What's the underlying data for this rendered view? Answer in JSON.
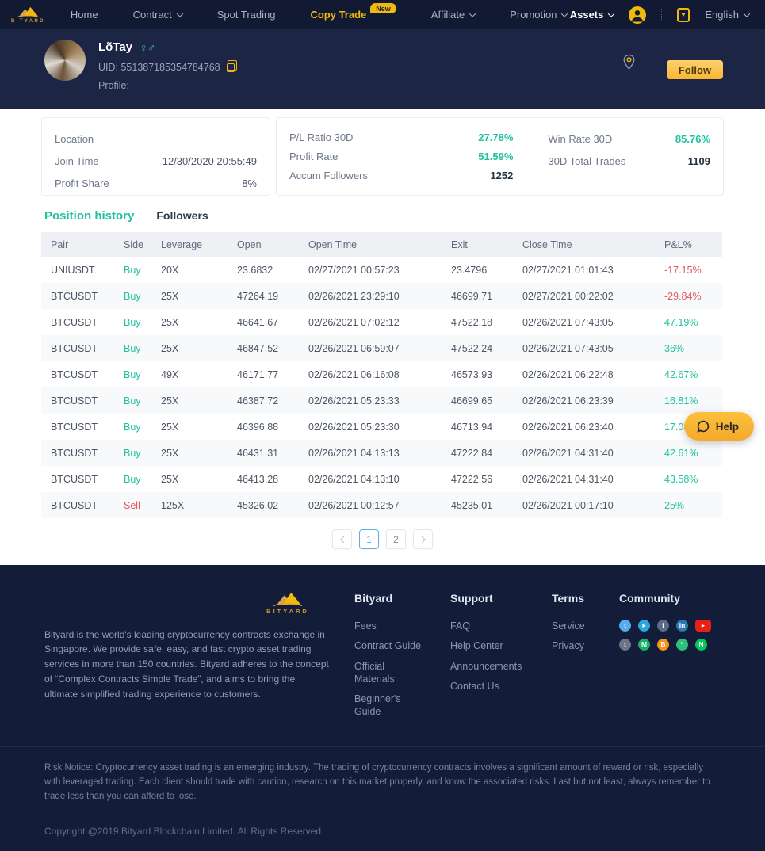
{
  "colors": {
    "accent_yellow": "#f0b90b",
    "teal": "#21c2a0",
    "red": "#e0575b",
    "page_active_blue": "#58b0e8",
    "nav_bg": "#121a33",
    "band_bg": "#1c2543"
  },
  "nav": {
    "brand": "BITYARD",
    "items": [
      {
        "label": "Home",
        "dropdown": false,
        "active": false
      },
      {
        "label": "Contract",
        "dropdown": true,
        "active": false
      },
      {
        "label": "Spot Trading",
        "dropdown": false,
        "active": false
      },
      {
        "label": "Copy Trade",
        "dropdown": false,
        "active": true,
        "badge": "New"
      },
      {
        "label": "Affiliate",
        "dropdown": true,
        "active": false
      },
      {
        "label": "Promotion",
        "dropdown": true,
        "active": false
      }
    ],
    "assets_label": "Assets",
    "language": "English",
    "icons": {
      "avatar": "user-avatar-icon",
      "download": "app-download-icon"
    }
  },
  "profile": {
    "name": "LõTay",
    "gender_glyph": "♀♂",
    "uid_text": "UID: 551387185354784768",
    "profile_label": "Profile:",
    "follow_button": "Follow",
    "icons": {
      "pin": "location-pin-icon",
      "copy": "copy-icon"
    }
  },
  "info": {
    "rows": [
      {
        "label": "Location",
        "value": ""
      },
      {
        "label": "Join Time",
        "value": "12/30/2020 20:55:49"
      },
      {
        "label": "Profit Share",
        "value": "8%"
      }
    ]
  },
  "stats": {
    "left": [
      {
        "label": "P/L Ratio 30D",
        "value": "27.78%",
        "accent": true
      },
      {
        "label": "Profit Rate",
        "value": "51.59%",
        "accent": true
      },
      {
        "label": "Accum Followers",
        "value": "1252",
        "accent": false
      }
    ],
    "right": [
      {
        "label": "Win Rate 30D",
        "value": "85.76%",
        "accent": true
      },
      {
        "label": "30D Total Trades",
        "value": "1109",
        "accent": false
      }
    ]
  },
  "tabs": {
    "position_history": "Position history",
    "followers": "Followers"
  },
  "table": {
    "headers": [
      "Pair",
      "Side",
      "Leverage",
      "Open",
      "Open Time",
      "Exit",
      "Close Time",
      "P&L%"
    ],
    "rows": [
      {
        "pair": "UNIUSDT",
        "side": "Buy",
        "leverage": "20X",
        "open": "23.6832",
        "open_time": "02/27/2021 00:57:23",
        "exit": "23.4796",
        "close_time": "02/27/2021 01:01:43",
        "pnl": "-17.15%"
      },
      {
        "pair": "BTCUSDT",
        "side": "Buy",
        "leverage": "25X",
        "open": "47264.19",
        "open_time": "02/26/2021 23:29:10",
        "exit": "46699.71",
        "close_time": "02/27/2021 00:22:02",
        "pnl": "-29.84%"
      },
      {
        "pair": "BTCUSDT",
        "side": "Buy",
        "leverage": "25X",
        "open": "46641.67",
        "open_time": "02/26/2021 07:02:12",
        "exit": "47522.18",
        "close_time": "02/26/2021 07:43:05",
        "pnl": "47.19%"
      },
      {
        "pair": "BTCUSDT",
        "side": "Buy",
        "leverage": "25X",
        "open": "46847.52",
        "open_time": "02/26/2021 06:59:07",
        "exit": "47522.24",
        "close_time": "02/26/2021 07:43:05",
        "pnl": "36%"
      },
      {
        "pair": "BTCUSDT",
        "side": "Buy",
        "leverage": "49X",
        "open": "46171.77",
        "open_time": "02/26/2021 06:16:08",
        "exit": "46573.93",
        "close_time": "02/26/2021 06:22:48",
        "pnl": "42.67%"
      },
      {
        "pair": "BTCUSDT",
        "side": "Buy",
        "leverage": "25X",
        "open": "46387.72",
        "open_time": "02/26/2021 05:23:33",
        "exit": "46699.65",
        "close_time": "02/26/2021 06:23:39",
        "pnl": "16.81%"
      },
      {
        "pair": "BTCUSDT",
        "side": "Buy",
        "leverage": "25X",
        "open": "46396.88",
        "open_time": "02/26/2021 05:23:30",
        "exit": "46713.94",
        "close_time": "02/26/2021 06:23:40",
        "pnl": "17.08%"
      },
      {
        "pair": "BTCUSDT",
        "side": "Buy",
        "leverage": "25X",
        "open": "46431.31",
        "open_time": "02/26/2021 04:13:13",
        "exit": "47222.84",
        "close_time": "02/26/2021 04:31:40",
        "pnl": "42.61%"
      },
      {
        "pair": "BTCUSDT",
        "side": "Buy",
        "leverage": "25X",
        "open": "46413.28",
        "open_time": "02/26/2021 04:13:10",
        "exit": "47222.56",
        "close_time": "02/26/2021 04:31:40",
        "pnl": "43.58%"
      },
      {
        "pair": "BTCUSDT",
        "side": "Sell",
        "leverage": "125X",
        "open": "45326.02",
        "open_time": "02/26/2021 00:12:57",
        "exit": "45235.01",
        "close_time": "02/26/2021 00:17:10",
        "pnl": "25%"
      }
    ]
  },
  "pagination": {
    "pages": [
      "1",
      "2"
    ],
    "active": "1",
    "prev_icon": "chevron-left-icon",
    "next_icon": "chevron-right-icon"
  },
  "help": {
    "label": "Help",
    "icon": "speech-bubble-icon"
  },
  "footer": {
    "brand": "BITYARD",
    "about": "Bityard is the world's leading cryptocurrency contracts exchange in Singapore. We provide safe, easy, and fast crypto asset trading services in more than 150 countries. Bityard adheres to the concept of “Complex Contracts Simple Trade”, and aims to bring the ultimate simplified trading experience to customers.",
    "columns": [
      {
        "title": "Bityard",
        "links": [
          "Fees",
          "Contract Guide",
          "Official Materials",
          "Beginner's Guide"
        ]
      },
      {
        "title": "Support",
        "links": [
          "FAQ",
          "Help Center",
          "Announcements",
          "Contact Us"
        ]
      },
      {
        "title": "Terms",
        "links": [
          "Service",
          "Privacy"
        ]
      }
    ],
    "community": {
      "title": "Community",
      "icons": [
        {
          "name": "twitter-icon",
          "glyph": "t",
          "color": "#55acee",
          "shape": "circle"
        },
        {
          "name": "telegram-icon",
          "glyph": "▸",
          "color": "#2ca5e0",
          "shape": "circle"
        },
        {
          "name": "facebook-icon",
          "glyph": "f",
          "color": "#5a6b8c",
          "shape": "circle"
        },
        {
          "name": "linkedin-icon",
          "glyph": "in",
          "color": "#2d77b5",
          "shape": "circle"
        },
        {
          "name": "youtube-icon",
          "glyph": "▸",
          "color": "#e62117",
          "shape": "rect"
        },
        {
          "name": "tumblr-icon",
          "glyph": "t",
          "color": "#6d7585",
          "shape": "circle"
        },
        {
          "name": "medium-icon",
          "glyph": "M",
          "color": "#17b06b",
          "shape": "circle"
        },
        {
          "name": "bitcointalk-icon",
          "glyph": "B",
          "color": "#f7931a",
          "shape": "circle"
        },
        {
          "name": "chat-icon",
          "glyph": "“",
          "color": "#30be7e",
          "shape": "circle"
        },
        {
          "name": "naver-icon",
          "glyph": "N",
          "color": "#03c75a",
          "shape": "circle"
        }
      ]
    },
    "risk_notice": "Risk Notice: Cryptocurrency asset trading is an emerging industry. The trading of cryptocurrency contracts involves a significant amount of reward or risk, especially with leveraged trading. Each client should trade with caution, research on this market properly, and know the associated risks. Last but not least, always remember to trade less than you can afford to lose.",
    "copyright": "Copyright @2019 Bityard Blockchain Limited. All Rights Reserved"
  }
}
